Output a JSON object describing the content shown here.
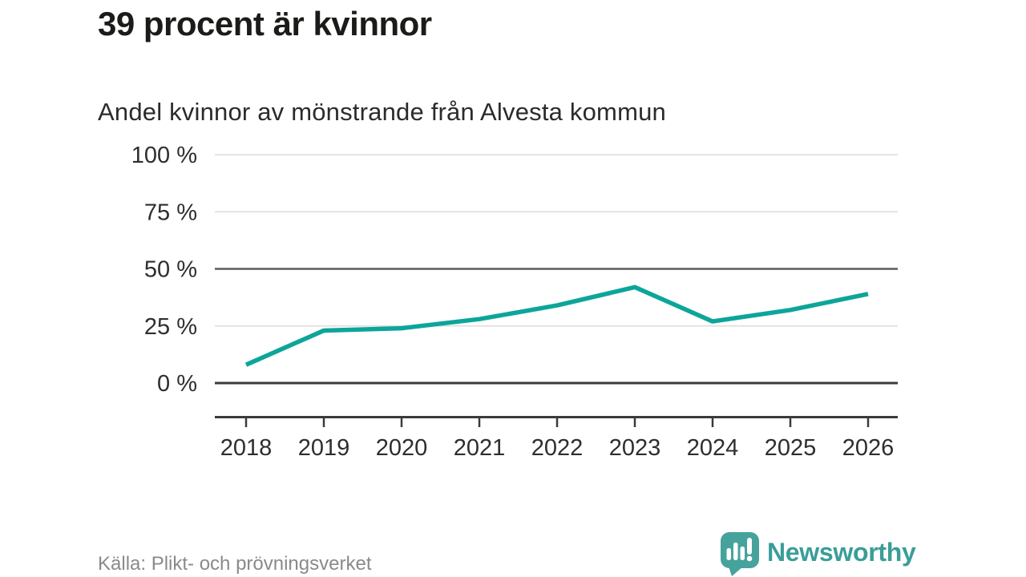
{
  "header": {
    "title": "39 procent är kvinnor",
    "subtitle": "Andel kvinnor av mönstrande från Alvesta kommun"
  },
  "footer": {
    "source": "Källa: Plikt- och prövningsverket",
    "brand": "Newsworthy"
  },
  "colors": {
    "line": "#0DA59A",
    "grid_light": "#DCDCDC",
    "grid_mid": "#5C5C5C",
    "axis_dark": "#3B3B3B",
    "tick_text": "#2E2E2E",
    "title_text": "#1B1B19",
    "subtitle_text": "#2B2B2B",
    "source_text": "#8A8A8A",
    "brand_teal": "#3A9D98",
    "logo_bubble": "#46A39C"
  },
  "chart_data": {
    "type": "line",
    "title": "39 procent är kvinnor",
    "subtitle": "Andel kvinnor av mönstrande från Alvesta kommun",
    "xlabel": "",
    "ylabel": "",
    "x": [
      2018,
      2019,
      2020,
      2021,
      2022,
      2023,
      2024,
      2025,
      2026
    ],
    "series": [
      {
        "name": "Andel kvinnor av mönstrande",
        "color": "#0DA59A",
        "values": [
          8,
          23,
          24,
          28,
          34,
          42,
          27,
          32,
          39
        ]
      }
    ],
    "ylim": [
      0,
      100
    ],
    "yticks": [
      {
        "value": 100,
        "label": "100 %",
        "style": "light"
      },
      {
        "value": 75,
        "label": "75 %",
        "style": "light"
      },
      {
        "value": 50,
        "label": "50 %",
        "style": "dark"
      },
      {
        "value": 25,
        "label": "25 %",
        "style": "light"
      },
      {
        "value": 0,
        "label": "0 %",
        "style": "axis"
      }
    ],
    "grid": "horizontal",
    "legend": "none",
    "unit": "%"
  }
}
